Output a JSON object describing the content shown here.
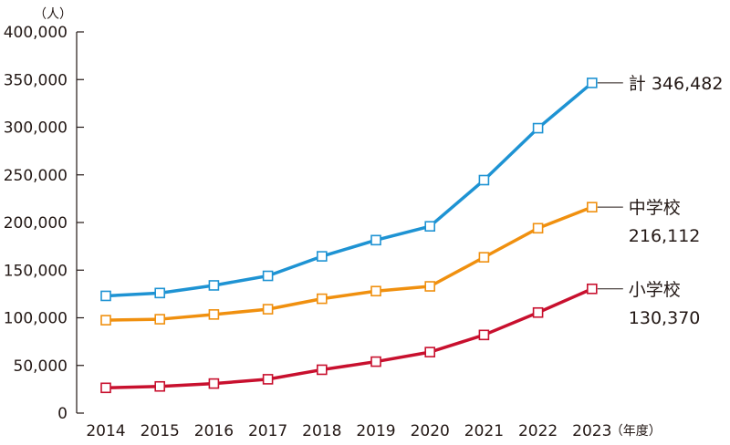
{
  "chart_data": {
    "type": "line",
    "y_unit": "（人）",
    "x_unit": "（年度）",
    "categories": [
      "2014",
      "2015",
      "2016",
      "2017",
      "2018",
      "2019",
      "2020",
      "2021",
      "2022",
      "2023"
    ],
    "ylim": [
      0,
      400000
    ],
    "yticks": [
      0,
      50000,
      100000,
      150000,
      200000,
      250000,
      300000,
      350000,
      400000
    ],
    "ytick_labels": [
      "0",
      "50,000",
      "100,000",
      "150,000",
      "200,000",
      "250,000",
      "300,000",
      "350,000",
      "400,000"
    ],
    "grid": false,
    "series": [
      {
        "key": "total",
        "color": "#1e93d3",
        "end_label": [
          "計 346,482"
        ],
        "values": [
          123000,
          126000,
          134000,
          144000,
          164500,
          181500,
          196000,
          244500,
          299000,
          346482
        ]
      },
      {
        "key": "junior_high",
        "color": "#f0900f",
        "end_label": [
          "中学校",
          "216,112"
        ],
        "values": [
          97500,
          98500,
          103500,
          109000,
          120000,
          128000,
          133000,
          163500,
          194000,
          216112
        ]
      },
      {
        "key": "elementary",
        "color": "#c8102e",
        "end_label": [
          "小学校",
          "130,370"
        ],
        "values": [
          26500,
          28000,
          31000,
          35500,
          45500,
          54000,
          64000,
          82000,
          105500,
          130370
        ]
      }
    ]
  }
}
